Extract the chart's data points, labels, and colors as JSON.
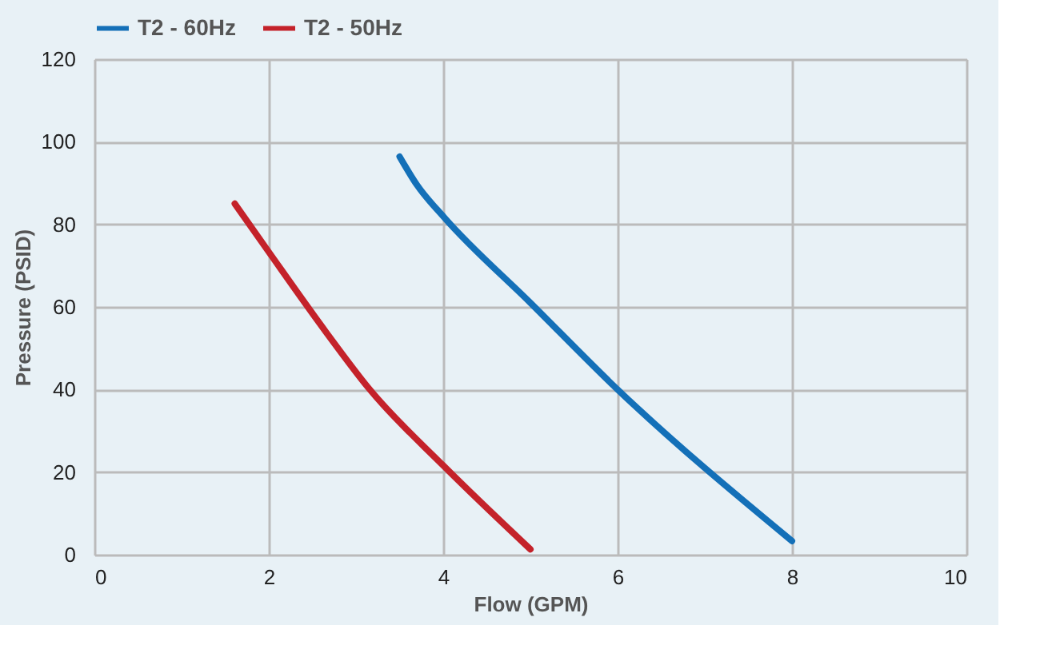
{
  "chart_data": {
    "type": "line",
    "xlabel": "Flow (GPM)",
    "ylabel": "Pressure (PSID)",
    "xlim": [
      0,
      10
    ],
    "xticks": [
      0,
      2,
      4,
      6,
      8,
      10
    ],
    "ylim": [
      0,
      120
    ],
    "yticks": [
      0,
      20,
      40,
      60,
      80,
      100,
      120
    ],
    "grid": true,
    "legend": "top",
    "marker": "none",
    "line_style": "solid",
    "series": [
      {
        "name": "T2 - 60Hz",
        "color": "#1470b8",
        "x": [
          3.5,
          3.7,
          4.01,
          5.0,
          5.99,
          8.0
        ],
        "values": [
          96.4,
          89.5,
          81.7,
          61,
          40.2,
          3.3
        ]
      },
      {
        "name": "T2 - 50Hz",
        "color": "#c4222a",
        "x": [
          1.61,
          2.0,
          2.66,
          3.15,
          4.01,
          5.0
        ],
        "values": [
          85,
          73.3,
          53.8,
          40.2,
          21.4,
          1.3
        ]
      }
    ]
  }
}
